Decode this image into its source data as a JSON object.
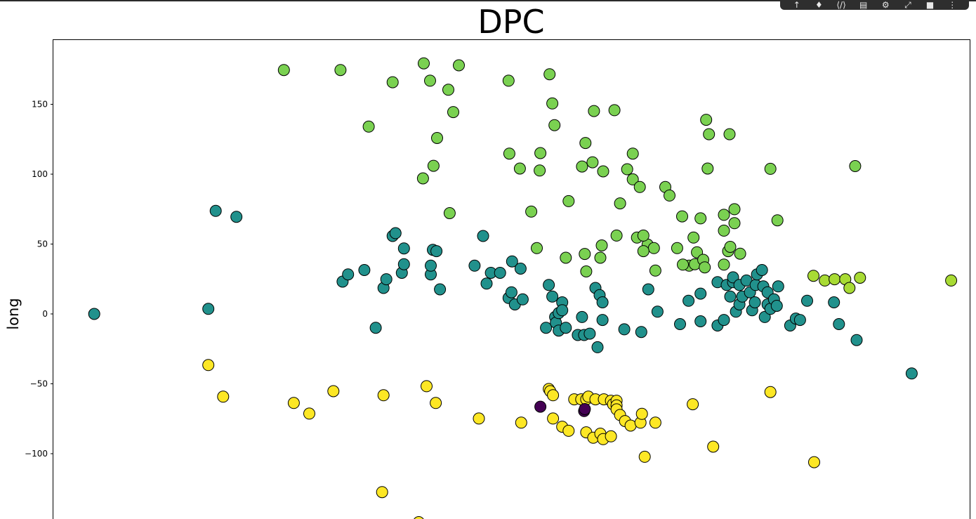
{
  "toolbar": {
    "icons": [
      "pan-icon",
      "pin-icon",
      "code-icon",
      "comment-icon",
      "gear-icon",
      "expand-icon",
      "delete-icon",
      "more-icon"
    ],
    "glyphs": [
      "↑",
      "♦",
      "⟨/⟩",
      "▤",
      "⚙",
      "⤢",
      "■",
      "⋮"
    ]
  },
  "chart_data": {
    "type": "scatter",
    "title": "DPC",
    "xlabel": "",
    "ylabel": "long",
    "yticks": [
      150,
      100,
      50,
      0,
      -50,
      -100
    ],
    "ytick_labels": [
      "150",
      "100",
      "50",
      "0",
      "−50",
      "−100"
    ],
    "ylim": [
      -150,
      196
    ],
    "xlim": [
      0,
      1000
    ],
    "grid": false,
    "legend": "none",
    "colors": {
      "c0": "#440154",
      "c1": "#21918c",
      "c2": "#7ad151",
      "c3": "#a8db34",
      "c4": "#fde725"
    },
    "points": [
      [
        44.6,
        0,
        "c1"
      ],
      [
        169.1,
        3.6,
        "c1"
      ],
      [
        177.2,
        73.7,
        "c1"
      ],
      [
        199.8,
        69.5,
        "c1"
      ],
      [
        315.6,
        23.1,
        "c1"
      ],
      [
        321.6,
        28.3,
        "c1"
      ],
      [
        339.4,
        31.4,
        "c1"
      ],
      [
        351.8,
        -9.9,
        "c1"
      ],
      [
        360.3,
        18.6,
        "c1"
      ],
      [
        363.4,
        24.8,
        "c1"
      ],
      [
        370.3,
        55.8,
        "c1"
      ],
      [
        373.4,
        57.8,
        "c1"
      ],
      [
        380.3,
        29.4,
        "c1"
      ],
      [
        382.6,
        35.6,
        "c1"
      ],
      [
        382.6,
        46.9,
        "c1"
      ],
      [
        411.9,
        28.3,
        "c1"
      ],
      [
        411.9,
        34.5,
        "c1"
      ],
      [
        414.2,
        45.9,
        "c1"
      ],
      [
        418.1,
        44.9,
        "c1"
      ],
      [
        421.9,
        17.6,
        "c1"
      ],
      [
        459.7,
        34.5,
        "c1"
      ],
      [
        469.0,
        55.8,
        "c1"
      ],
      [
        472.8,
        21.7,
        "c1"
      ],
      [
        477.5,
        29.4,
        "c1"
      ],
      [
        487.5,
        29.4,
        "c1"
      ],
      [
        496.8,
        11.4,
        "c1"
      ],
      [
        499.9,
        15.5,
        "c1"
      ],
      [
        500.6,
        37.6,
        "c1"
      ],
      [
        503.7,
        6.8,
        "c1"
      ],
      [
        509.9,
        32.4,
        "c1"
      ],
      [
        512.2,
        10.4,
        "c1"
      ],
      [
        537.6,
        -9.9,
        "c1"
      ],
      [
        540.7,
        20.7,
        "c1"
      ],
      [
        544.5,
        12.4,
        "c1"
      ],
      [
        547.6,
        -2.2,
        "c1"
      ],
      [
        548.4,
        -6.3,
        "c1"
      ],
      [
        551.5,
        -11.9,
        "c1"
      ],
      [
        551.5,
        0.6,
        "c1"
      ],
      [
        555.3,
        8.3,
        "c1"
      ],
      [
        555.3,
        2.6,
        "c1"
      ],
      [
        559.2,
        -9.9,
        "c1"
      ],
      [
        572.3,
        -15.1,
        "c1"
      ],
      [
        576.9,
        -2.2,
        "c1"
      ],
      [
        579.2,
        -15.1,
        "c1"
      ],
      [
        585.4,
        -14.1,
        "c1"
      ],
      [
        591.6,
        18.6,
        "c1"
      ],
      [
        593.9,
        -23.8,
        "c1"
      ],
      [
        596.2,
        13.4,
        "c1"
      ],
      [
        599.3,
        8.3,
        "c1"
      ],
      [
        599.3,
        -4.3,
        "c1"
      ],
      [
        623.1,
        -11.0,
        "c1"
      ],
      [
        641.6,
        -12.9,
        "c1"
      ],
      [
        649.3,
        17.6,
        "c1"
      ],
      [
        659.3,
        1.6,
        "c1"
      ],
      [
        683.9,
        -7.3,
        "c1"
      ],
      [
        693.2,
        9.4,
        "c1"
      ],
      [
        706.3,
        -5.3,
        "c1"
      ],
      [
        706.3,
        14.5,
        "c1"
      ],
      [
        724.8,
        22.7,
        "c1"
      ],
      [
        724.8,
        -8.3,
        "c1"
      ],
      [
        731.8,
        -4.3,
        "c1"
      ],
      [
        734.9,
        20.7,
        "c1"
      ],
      [
        738.7,
        12.4,
        "c1"
      ],
      [
        741.8,
        22.7,
        "c1"
      ],
      [
        741.8,
        26.2,
        "c1"
      ],
      [
        744.9,
        1.6,
        "c1"
      ],
      [
        748.7,
        6.8,
        "c1"
      ],
      [
        748.7,
        20.7,
        "c1"
      ],
      [
        751.8,
        12.4,
        "c1"
      ],
      [
        756.4,
        23.9,
        "c1"
      ],
      [
        760.2,
        15.5,
        "c1"
      ],
      [
        762.6,
        2.6,
        "c1"
      ],
      [
        765.6,
        8.3,
        "c1"
      ],
      [
        766.4,
        20.7,
        "c1"
      ],
      [
        767.9,
        28.3,
        "c1"
      ],
      [
        773.3,
        31.4,
        "c1"
      ],
      [
        774.8,
        19.7,
        "c1"
      ],
      [
        776.4,
        -2.2,
        "c1"
      ],
      [
        779.5,
        6.8,
        "c1"
      ],
      [
        779.5,
        15.5,
        "c1"
      ],
      [
        782.5,
        3.6,
        "c1"
      ],
      [
        786.4,
        10.4,
        "c1"
      ],
      [
        789.5,
        5.8,
        "c1"
      ],
      [
        791.0,
        19.7,
        "c1"
      ],
      [
        804.1,
        -8.3,
        "c1"
      ],
      [
        810.3,
        -3.3,
        "c1"
      ],
      [
        814.9,
        -4.3,
        "c1"
      ],
      [
        822.6,
        9.4,
        "c1"
      ],
      [
        851.9,
        8.3,
        "c1"
      ],
      [
        857.3,
        -7.3,
        "c1"
      ],
      [
        876.6,
        -18.7,
        "c1"
      ],
      [
        936.7,
        -42.6,
        "c1"
      ],
      [
        562.3,
        80.7,
        "c2"
      ],
      [
        546.9,
        135.1,
        "c2"
      ],
      [
        544.5,
        150.6,
        "c2"
      ],
      [
        541.5,
        171.5,
        "c2"
      ],
      [
        496.8,
        166.9,
        "c2"
      ],
      [
        442.5,
        177.9,
        "c2"
      ],
      [
        436.4,
        144.4,
        "c2"
      ],
      [
        431.0,
        160.4,
        "c2"
      ],
      [
        411.1,
        166.9,
        "c2"
      ],
      [
        404.2,
        179.3,
        "c2"
      ],
      [
        370.3,
        165.8,
        "c2"
      ],
      [
        344.1,
        134.0,
        "c2"
      ],
      [
        313.3,
        174.5,
        "c2"
      ],
      [
        251.6,
        174.5,
        "c2"
      ],
      [
        432.5,
        72.1,
        "c2"
      ],
      [
        418.8,
        125.9,
        "c2"
      ],
      [
        414.9,
        106.0,
        "c2"
      ],
      [
        403.4,
        97.0,
        "c2"
      ],
      [
        497.6,
        114.7,
        "c2"
      ],
      [
        509.1,
        104.0,
        "c2"
      ],
      [
        531.5,
        115.1,
        "c2"
      ],
      [
        530.7,
        102.6,
        "c2"
      ],
      [
        521.5,
        73.2,
        "c2"
      ],
      [
        527.6,
        47.1,
        "c2"
      ],
      [
        576.9,
        105.5,
        "c2"
      ],
      [
        580.7,
        122.3,
        "c2"
      ],
      [
        588.4,
        108.5,
        "c2"
      ],
      [
        590.0,
        145.2,
        "c2"
      ],
      [
        600.0,
        102.0,
        "c2"
      ],
      [
        612.3,
        145.8,
        "c2"
      ],
      [
        618.5,
        79.1,
        "c2"
      ],
      [
        626.2,
        103.5,
        "c2"
      ],
      [
        632.3,
        96.3,
        "c2"
      ],
      [
        632.3,
        114.7,
        "c2"
      ],
      [
        640.0,
        90.8,
        "c2"
      ],
      [
        648.5,
        49.6,
        "c2"
      ],
      [
        655.4,
        47.1,
        "c2"
      ],
      [
        667.8,
        90.8,
        "c2"
      ],
      [
        672.4,
        84.7,
        "c2"
      ],
      [
        686.2,
        69.8,
        "c2"
      ],
      [
        698.6,
        54.6,
        "c2"
      ],
      [
        706.3,
        68.4,
        "c2"
      ],
      [
        715.5,
        128.6,
        "c2"
      ],
      [
        712.4,
        138.9,
        "c2"
      ],
      [
        714.0,
        104.0,
        "c2"
      ],
      [
        737.9,
        128.6,
        "c2"
      ],
      [
        614.6,
        56.1,
        "c2"
      ],
      [
        636.9,
        54.6,
        "c2"
      ],
      [
        643.9,
        44.9,
        "c2"
      ],
      [
        657.0,
        31.0,
        "c2"
      ],
      [
        643.9,
        56.1,
        "c2"
      ],
      [
        680.8,
        47.1,
        "c2"
      ],
      [
        693.9,
        34.5,
        "c2"
      ],
      [
        700.1,
        35.6,
        "c2"
      ],
      [
        702.4,
        44.1,
        "c2"
      ],
      [
        709.3,
        38.7,
        "c2"
      ],
      [
        710.9,
        33.3,
        "c2"
      ],
      [
        731.8,
        35.3,
        "c2"
      ],
      [
        731.8,
        59.6,
        "c2"
      ],
      [
        731.8,
        70.9,
        "c2"
      ],
      [
        736.4,
        44.9,
        "c2"
      ],
      [
        738.7,
        48.0,
        "c2"
      ],
      [
        743.3,
        74.9,
        "c2"
      ],
      [
        743.3,
        64.9,
        "c2"
      ],
      [
        749.5,
        43.1,
        "c2"
      ],
      [
        782.5,
        103.8,
        "c2"
      ],
      [
        790.2,
        67.0,
        "c2"
      ],
      [
        875.0,
        105.8,
        "c2"
      ],
      [
        559.2,
        40.2,
        "c2"
      ],
      [
        579.9,
        42.9,
        "c2"
      ],
      [
        581.5,
        30.4,
        "c2"
      ],
      [
        596.9,
        40.2,
        "c2"
      ],
      [
        598.5,
        49.0,
        "c2"
      ],
      [
        687.0,
        35.3,
        "c2"
      ],
      [
        829.5,
        27.3,
        "c3"
      ],
      [
        841.9,
        23.9,
        "c3"
      ],
      [
        852.6,
        24.8,
        "c3"
      ],
      [
        864.2,
        24.8,
        "c3"
      ],
      [
        868.8,
        18.6,
        "c3"
      ],
      [
        880.3,
        25.9,
        "c3"
      ],
      [
        979.8,
        23.9,
        "c3"
      ],
      [
        169.1,
        -36.6,
        "c4"
      ],
      [
        185.3,
        -59.2,
        "c4"
      ],
      [
        262.4,
        -63.7,
        "c4"
      ],
      [
        279.3,
        -71.3,
        "c4"
      ],
      [
        305.6,
        -55.3,
        "c4"
      ],
      [
        360.3,
        -58.2,
        "c4"
      ],
      [
        407.3,
        -51.7,
        "c4"
      ],
      [
        417.3,
        -63.7,
        "c4"
      ],
      [
        464.4,
        -74.8,
        "c4"
      ],
      [
        510.6,
        -77.8,
        "c4"
      ],
      [
        540.7,
        -53.7,
        "c4"
      ],
      [
        542.2,
        -55.3,
        "c4"
      ],
      [
        545.3,
        -58.2,
        "c4"
      ],
      [
        545.3,
        -74.8,
        "c4"
      ],
      [
        568.4,
        -61.1,
        "c4"
      ],
      [
        576.1,
        -61.1,
        "c4"
      ],
      [
        581.5,
        -61.1,
        "c4"
      ],
      [
        583.8,
        -59.2,
        "c4"
      ],
      [
        591.6,
        -61.1,
        "c4"
      ],
      [
        600.8,
        -61.1,
        "c4"
      ],
      [
        608.5,
        -62.1,
        "c4"
      ],
      [
        610.8,
        -64.6,
        "c4"
      ],
      [
        614.6,
        -62.1,
        "c4"
      ],
      [
        614.6,
        -65.5,
        "c4"
      ],
      [
        614.6,
        -68.3,
        "c4"
      ],
      [
        618.5,
        -72.3,
        "c4"
      ],
      [
        623.9,
        -76.7,
        "c4"
      ],
      [
        630.0,
        -79.9,
        "c4"
      ],
      [
        640.8,
        -77.8,
        "c4"
      ],
      [
        642.3,
        -71.5,
        "c4"
      ],
      [
        657.0,
        -77.8,
        "c4"
      ],
      [
        555.3,
        -80.7,
        "c4"
      ],
      [
        562.3,
        -83.6,
        "c4"
      ],
      [
        581.5,
        -84.7,
        "c4"
      ],
      [
        589.2,
        -88.6,
        "c4"
      ],
      [
        596.9,
        -85.7,
        "c4"
      ],
      [
        600.0,
        -89.6,
        "c4"
      ],
      [
        608.5,
        -87.6,
        "c4"
      ],
      [
        720.1,
        -95.0,
        "c4"
      ],
      [
        645.4,
        -102.2,
        "c4"
      ],
      [
        697.8,
        -64.6,
        "c4"
      ],
      [
        782.5,
        -55.9,
        "c4"
      ],
      [
        830.3,
        -106.1,
        "c4"
      ],
      [
        358.8,
        -127.5,
        "c4"
      ],
      [
        398.8,
        -149.0,
        "c4"
      ],
      [
        531.5,
        -66.4,
        "c0"
      ],
      [
        579.2,
        -69.5,
        "c0"
      ],
      [
        580.0,
        -68.1,
        "c0"
      ]
    ]
  }
}
